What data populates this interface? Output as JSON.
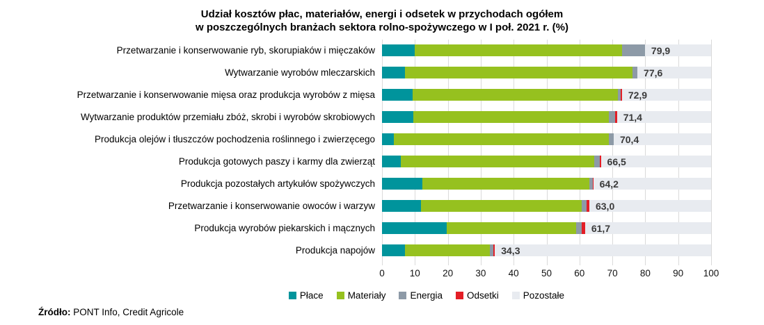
{
  "title": {
    "line1": "Udział kosztów płac, materiałów, energi i odsetek w przychodach ogółem",
    "line2": "w poszczególnych branżach sektora rolno-spożywczego w I poł. 2021 r. (%)"
  },
  "source": {
    "label": "Źródło:",
    "text": "PONT Info, Credit Agricole"
  },
  "colors": {
    "place": "#00949C",
    "materialy": "#96C11F",
    "energia": "#8D9AA7",
    "odsetki": "#E31E26",
    "pozostale": "#E8EBF0",
    "gridline": "#DADADA",
    "value_label": "#3a3a3a"
  },
  "chart_data": {
    "type": "bar",
    "orientation": "horizontal-stacked",
    "title": "Udział kosztów płac, materiałów, energi i odsetek w przychodach ogółem w poszczególnych branżach sektora rolno-spożywczego w I poł. 2021 r. (%)",
    "categories": [
      "Przetwarzanie i konserwowanie ryb, skorupiaków i mięczaków",
      "Wytwarzanie wyrobów mleczarskich",
      "Przetwarzanie i konserwowanie mięsa oraz produkcja wyrobów z mięsa",
      "Wytwarzanie produktów przemiału zbóż, skrobi i wyrobów skrobiowych",
      "Produkcja olejów i tłuszczów pochodzenia roślinnego i zwierzęcego",
      "Produkcja gotowych paszy i karmy dla zwierząt",
      "Produkcja pozostałych artykułów spożywczych",
      "Przetwarzanie i konserwowanie owoców i warzyw",
      "Produkcja wyrobów piekarskich i mącznych",
      "Produkcja napojów"
    ],
    "series": [
      {
        "name": "Płace",
        "color": "#00949C",
        "values": [
          10.0,
          7.0,
          9.3,
          9.5,
          3.6,
          5.7,
          12.2,
          11.8,
          19.7,
          6.9
        ]
      },
      {
        "name": "Materiały",
        "color": "#96C11F",
        "values": [
          62.9,
          69.1,
          62.3,
          59.4,
          65.3,
          58.8,
          50.8,
          48.9,
          39.2,
          25.9
        ]
      },
      {
        "name": "Energia",
        "color": "#8D9AA7",
        "values": [
          7.0,
          1.5,
          0.9,
          2.0,
          1.5,
          1.7,
          1.0,
          1.5,
          1.8,
          1.0
        ]
      },
      {
        "name": "Odsetki",
        "color": "#E31E26",
        "values": [
          0.0,
          0.0,
          0.4,
          0.5,
          0.0,
          0.3,
          0.2,
          0.8,
          1.0,
          0.5
        ]
      },
      {
        "name": "Pozostałe",
        "color": "#E8EBF0",
        "values": [
          20.1,
          22.4,
          27.1,
          28.6,
          29.6,
          33.5,
          35.8,
          37.0,
          38.3,
          65.7
        ]
      }
    ],
    "totals": [
      79.9,
      77.6,
      72.9,
      71.4,
      70.4,
      66.5,
      64.2,
      63.0,
      61.7,
      34.3
    ],
    "total_labels": [
      "79,9",
      "77,6",
      "72,9",
      "71,4",
      "70,4",
      "66,5",
      "64,2",
      "63,0",
      "61,7",
      "34,3"
    ],
    "xlim": [
      0,
      100
    ],
    "xticks": [
      0,
      10,
      20,
      30,
      40,
      50,
      60,
      70,
      80,
      90,
      100
    ],
    "grid": true,
    "legend_position": "bottom",
    "legend": [
      "Płace",
      "Materiały",
      "Energia",
      "Odsetki",
      "Pozostałe"
    ]
  }
}
